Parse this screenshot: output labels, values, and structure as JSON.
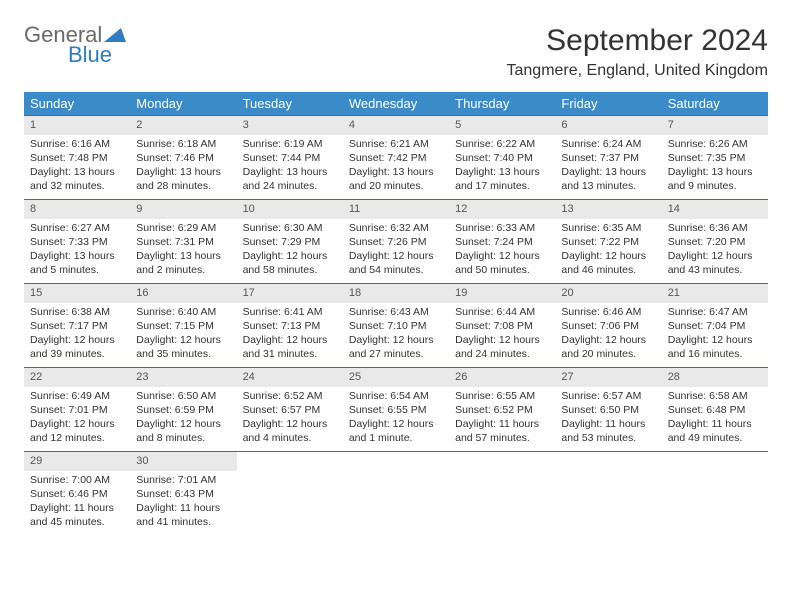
{
  "logo": {
    "word1": "General",
    "word2": "Blue"
  },
  "title": "September 2024",
  "location": "Tangmere, England, United Kingdom",
  "colors": {
    "header_bg": "#3b8bc9",
    "header_text": "#ffffff",
    "row_border": "#2f6ea6",
    "daynum_bg": "#e9e9e9",
    "text": "#333333",
    "logo_grey": "#6b6b6b",
    "logo_blue": "#2f7cc0"
  },
  "daynames": [
    "Sunday",
    "Monday",
    "Tuesday",
    "Wednesday",
    "Thursday",
    "Friday",
    "Saturday"
  ],
  "weeks": [
    [
      {
        "d": "1",
        "sr": "Sunrise: 6:16 AM",
        "ss": "Sunset: 7:48 PM",
        "dl": "Daylight: 13 hours and 32 minutes."
      },
      {
        "d": "2",
        "sr": "Sunrise: 6:18 AM",
        "ss": "Sunset: 7:46 PM",
        "dl": "Daylight: 13 hours and 28 minutes."
      },
      {
        "d": "3",
        "sr": "Sunrise: 6:19 AM",
        "ss": "Sunset: 7:44 PM",
        "dl": "Daylight: 13 hours and 24 minutes."
      },
      {
        "d": "4",
        "sr": "Sunrise: 6:21 AM",
        "ss": "Sunset: 7:42 PM",
        "dl": "Daylight: 13 hours and 20 minutes."
      },
      {
        "d": "5",
        "sr": "Sunrise: 6:22 AM",
        "ss": "Sunset: 7:40 PM",
        "dl": "Daylight: 13 hours and 17 minutes."
      },
      {
        "d": "6",
        "sr": "Sunrise: 6:24 AM",
        "ss": "Sunset: 7:37 PM",
        "dl": "Daylight: 13 hours and 13 minutes."
      },
      {
        "d": "7",
        "sr": "Sunrise: 6:26 AM",
        "ss": "Sunset: 7:35 PM",
        "dl": "Daylight: 13 hours and 9 minutes."
      }
    ],
    [
      {
        "d": "8",
        "sr": "Sunrise: 6:27 AM",
        "ss": "Sunset: 7:33 PM",
        "dl": "Daylight: 13 hours and 5 minutes."
      },
      {
        "d": "9",
        "sr": "Sunrise: 6:29 AM",
        "ss": "Sunset: 7:31 PM",
        "dl": "Daylight: 13 hours and 2 minutes."
      },
      {
        "d": "10",
        "sr": "Sunrise: 6:30 AM",
        "ss": "Sunset: 7:29 PM",
        "dl": "Daylight: 12 hours and 58 minutes."
      },
      {
        "d": "11",
        "sr": "Sunrise: 6:32 AM",
        "ss": "Sunset: 7:26 PM",
        "dl": "Daylight: 12 hours and 54 minutes."
      },
      {
        "d": "12",
        "sr": "Sunrise: 6:33 AM",
        "ss": "Sunset: 7:24 PM",
        "dl": "Daylight: 12 hours and 50 minutes."
      },
      {
        "d": "13",
        "sr": "Sunrise: 6:35 AM",
        "ss": "Sunset: 7:22 PM",
        "dl": "Daylight: 12 hours and 46 minutes."
      },
      {
        "d": "14",
        "sr": "Sunrise: 6:36 AM",
        "ss": "Sunset: 7:20 PM",
        "dl": "Daylight: 12 hours and 43 minutes."
      }
    ],
    [
      {
        "d": "15",
        "sr": "Sunrise: 6:38 AM",
        "ss": "Sunset: 7:17 PM",
        "dl": "Daylight: 12 hours and 39 minutes."
      },
      {
        "d": "16",
        "sr": "Sunrise: 6:40 AM",
        "ss": "Sunset: 7:15 PM",
        "dl": "Daylight: 12 hours and 35 minutes."
      },
      {
        "d": "17",
        "sr": "Sunrise: 6:41 AM",
        "ss": "Sunset: 7:13 PM",
        "dl": "Daylight: 12 hours and 31 minutes."
      },
      {
        "d": "18",
        "sr": "Sunrise: 6:43 AM",
        "ss": "Sunset: 7:10 PM",
        "dl": "Daylight: 12 hours and 27 minutes."
      },
      {
        "d": "19",
        "sr": "Sunrise: 6:44 AM",
        "ss": "Sunset: 7:08 PM",
        "dl": "Daylight: 12 hours and 24 minutes."
      },
      {
        "d": "20",
        "sr": "Sunrise: 6:46 AM",
        "ss": "Sunset: 7:06 PM",
        "dl": "Daylight: 12 hours and 20 minutes."
      },
      {
        "d": "21",
        "sr": "Sunrise: 6:47 AM",
        "ss": "Sunset: 7:04 PM",
        "dl": "Daylight: 12 hours and 16 minutes."
      }
    ],
    [
      {
        "d": "22",
        "sr": "Sunrise: 6:49 AM",
        "ss": "Sunset: 7:01 PM",
        "dl": "Daylight: 12 hours and 12 minutes."
      },
      {
        "d": "23",
        "sr": "Sunrise: 6:50 AM",
        "ss": "Sunset: 6:59 PM",
        "dl": "Daylight: 12 hours and 8 minutes."
      },
      {
        "d": "24",
        "sr": "Sunrise: 6:52 AM",
        "ss": "Sunset: 6:57 PM",
        "dl": "Daylight: 12 hours and 4 minutes."
      },
      {
        "d": "25",
        "sr": "Sunrise: 6:54 AM",
        "ss": "Sunset: 6:55 PM",
        "dl": "Daylight: 12 hours and 1 minute."
      },
      {
        "d": "26",
        "sr": "Sunrise: 6:55 AM",
        "ss": "Sunset: 6:52 PM",
        "dl": "Daylight: 11 hours and 57 minutes."
      },
      {
        "d": "27",
        "sr": "Sunrise: 6:57 AM",
        "ss": "Sunset: 6:50 PM",
        "dl": "Daylight: 11 hours and 53 minutes."
      },
      {
        "d": "28",
        "sr": "Sunrise: 6:58 AM",
        "ss": "Sunset: 6:48 PM",
        "dl": "Daylight: 11 hours and 49 minutes."
      }
    ],
    [
      {
        "d": "29",
        "sr": "Sunrise: 7:00 AM",
        "ss": "Sunset: 6:46 PM",
        "dl": "Daylight: 11 hours and 45 minutes."
      },
      {
        "d": "30",
        "sr": "Sunrise: 7:01 AM",
        "ss": "Sunset: 6:43 PM",
        "dl": "Daylight: 11 hours and 41 minutes."
      },
      null,
      null,
      null,
      null,
      null
    ]
  ]
}
